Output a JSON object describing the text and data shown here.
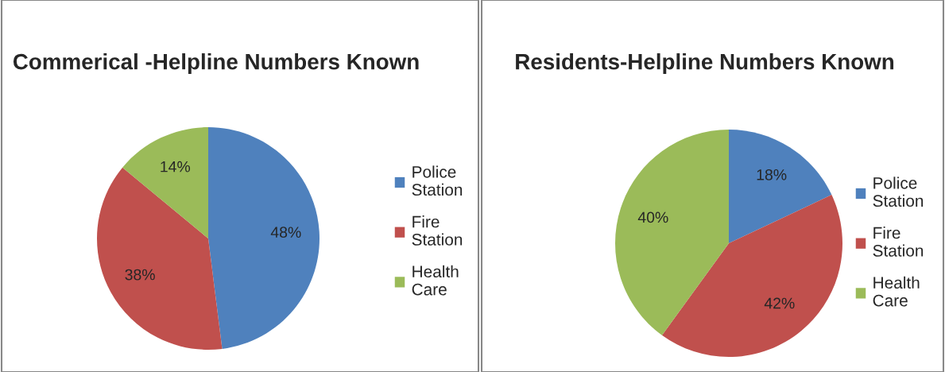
{
  "chart_data": [
    {
      "type": "pie",
      "title": "Commerical -Helpline Numbers Known",
      "categories": [
        "Police Station",
        "Fire Station",
        "Health Care"
      ],
      "values": [
        48,
        38,
        14
      ],
      "colors": [
        "#4f81bd",
        "#c0504d",
        "#9bbb59"
      ],
      "value_labels": [
        "48%",
        "38%",
        "14%"
      ],
      "legend": "right"
    },
    {
      "type": "pie",
      "title": "Residents-Helpline Numbers Known",
      "categories": [
        "Police Station",
        "Fire Station",
        "Health Care"
      ],
      "values": [
        18,
        42,
        40
      ],
      "colors": [
        "#4f81bd",
        "#c0504d",
        "#9bbb59"
      ],
      "value_labels": [
        "18%",
        "42%",
        "40%"
      ],
      "legend": "right"
    }
  ]
}
